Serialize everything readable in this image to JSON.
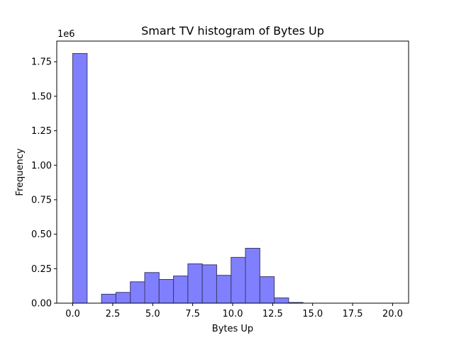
{
  "chart_data": {
    "type": "bar",
    "title": "Smart TV histogram of Bytes Up",
    "xlabel": "Bytes Up",
    "ylabel": "Frequency",
    "y_multiplier_label": "1e6",
    "xlim": [
      -1,
      21
    ],
    "ylim": [
      0,
      1.9
    ],
    "x_ticks": [
      0,
      2.5,
      5,
      7.5,
      10,
      12.5,
      15,
      17.5,
      20
    ],
    "x_tick_labels": [
      "0.0",
      "2.5",
      "5.0",
      "7.5",
      "10.0",
      "12.5",
      "15.0",
      "17.5",
      "20.0"
    ],
    "y_ticks": [
      0,
      0.25,
      0.5,
      0.75,
      1.0,
      1.25,
      1.5,
      1.75
    ],
    "y_tick_labels": [
      "0.00",
      "0.25",
      "0.50",
      "0.75",
      "1.00",
      "1.25",
      "1.50",
      "1.75"
    ],
    "bin_edges": [
      0,
      0.9,
      1.8,
      2.7,
      3.6,
      4.5,
      5.4,
      6.3,
      7.2,
      8.1,
      9.0,
      9.9,
      10.8,
      11.7,
      12.6,
      13.5,
      14.4,
      15.3,
      16.2,
      17.1,
      18.0,
      18.9
    ],
    "values": [
      1.81,
      0,
      0.065,
      0.078,
      0.155,
      0.222,
      0.172,
      0.197,
      0.285,
      0.278,
      0.202,
      0.332,
      0.398,
      0.192,
      0.038,
      0.005,
      0,
      0,
      0,
      0,
      0
    ],
    "grid": false,
    "colors": {
      "bar_fill": "#8080ff",
      "bar_edge": "#3a3a6a"
    }
  }
}
